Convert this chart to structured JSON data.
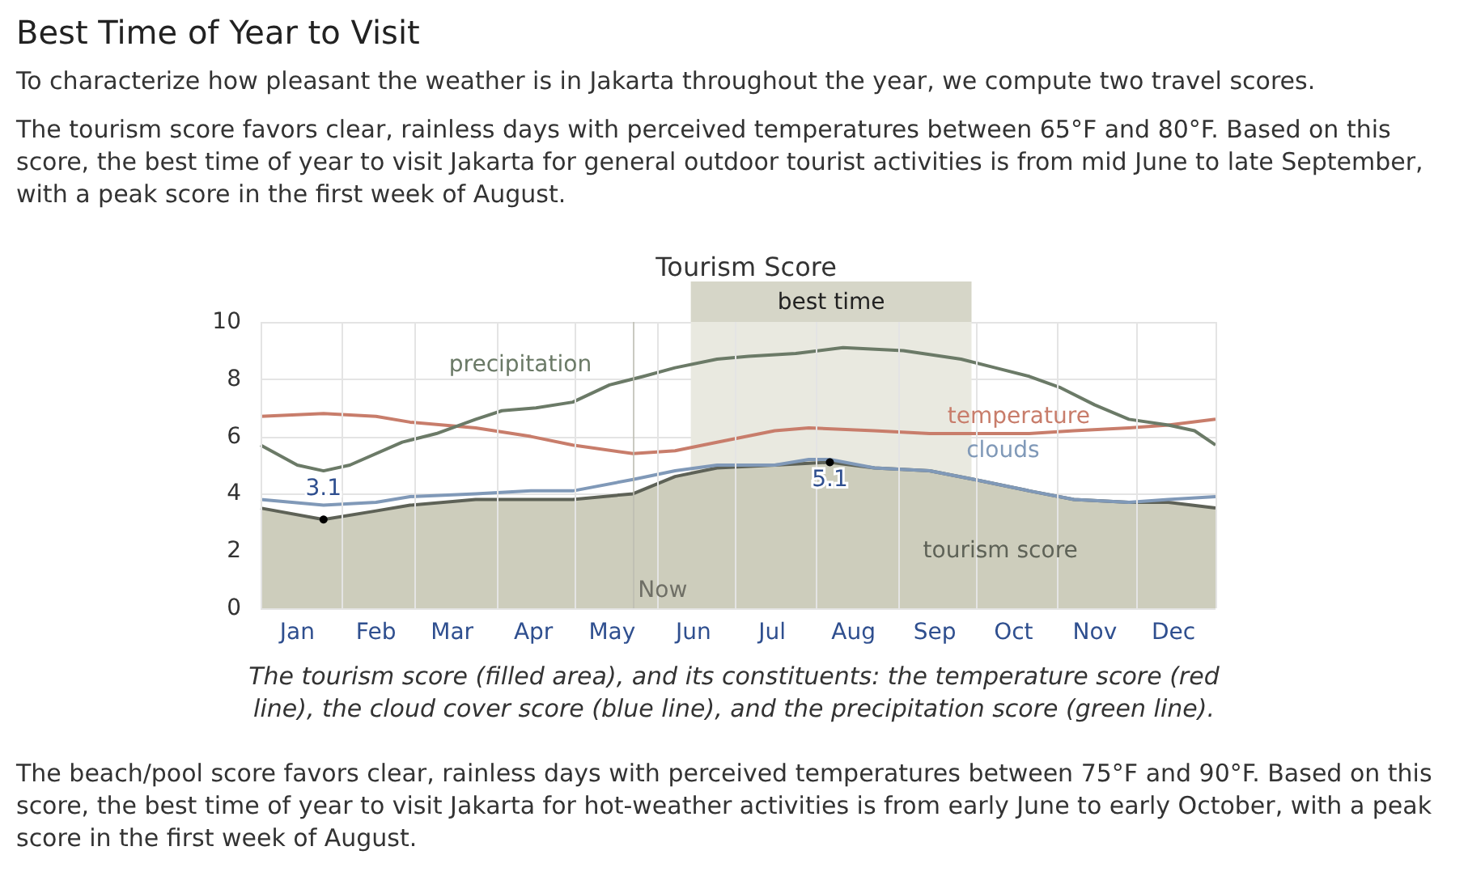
{
  "chart_data": {
    "type": "line",
    "title": "Best Time of Year to Visit",
    "subtitle": "Tourism Score",
    "annotations": [
      "To characterize how pleasant the weather is in Jakarta throughout the year, we compute two travel scores.",
      "The tourism score favors clear, rainless days with perceived temperatures between 65°F and 80°F. Based on this score, the best time of year to visit Jakarta for general outdoor tourist activities is from mid June to late September, with a peak score in the first week of August.",
      "The tourism score (filled area), and its constituents: the temperature score (red line), the cloud cover score (blue line), and the precipitation score (green line).",
      "The beach/pool score favors clear, rainless days with perceived temperatures between 75°F and 90°F. Based on this score, the best time of year to visit Jakarta for hot-weather activities is from early June to early October, with a peak score in the first week of August."
    ],
    "xlim": [
      "--01-01",
      "--12-31"
    ],
    "xticks": [
      {
        "value": "--01-01",
        "label": null
      },
      {
        "value": "--01-15",
        "label": "Jan"
      },
      {
        "value": "--02-01",
        "label": null
      },
      {
        "value": "--02-14",
        "label": "Feb"
      },
      {
        "value": "--03-01",
        "label": null
      },
      {
        "value": "--03-15",
        "label": "Mar"
      },
      {
        "value": "--04-01",
        "label": null
      },
      {
        "value": "--04-15",
        "label": "Apr"
      },
      {
        "value": "--05-01",
        "label": null
      },
      {
        "value": "--05-15",
        "label": "May"
      },
      {
        "value": "--06-01",
        "label": null
      },
      {
        "value": "--06-15",
        "label": "Jun"
      },
      {
        "value": "--07-01",
        "label": null
      },
      {
        "value": "--07-15",
        "label": "Jul"
      },
      {
        "value": "--08-01",
        "label": null
      },
      {
        "value": "--08-15",
        "label": "Aug"
      },
      {
        "value": "--09-01",
        "label": null
      },
      {
        "value": "--09-15",
        "label": "Sep"
      },
      {
        "value": "--10-01",
        "label": null
      },
      {
        "value": "--10-15",
        "label": "Oct"
      },
      {
        "value": "--11-01",
        "label": null
      },
      {
        "value": "--11-15",
        "label": "Nov"
      },
      {
        "value": "--12-01",
        "label": null
      },
      {
        "value": "--12-15",
        "label": "Dec"
      },
      {
        "value": "--12-31",
        "label": null
      }
    ],
    "ylim": [
      0,
      10
    ],
    "yticks": [
      0,
      2,
      4,
      6,
      8,
      10
    ],
    "grid": true,
    "legend": false,
    "marker": "none",
    "bands": [
      {
        "axis": "x",
        "from": "--06-14",
        "to": "--09-29",
        "label": "best time",
        "color": "#e9e9e0"
      }
    ],
    "ref_lines": [
      {
        "axis": "x",
        "value": "--05-23",
        "label": "Now",
        "color": "#bdbdb2"
      }
    ],
    "series": [
      {
        "name": "tourism score",
        "type": "area",
        "color": "#cdcdbc",
        "x": [
          "--01-01",
          "--01-25",
          "--02-14",
          "--02-27",
          "--03-24",
          "--04-14",
          "--04-30",
          "--05-23",
          "--06-08",
          "--06-24",
          "--07-16",
          "--08-06",
          "--08-23",
          "--09-13",
          "--09-30",
          "--10-21",
          "--11-07",
          "--11-28",
          "--12-13",
          "--12-31"
        ],
        "values": [
          3.5,
          3.1,
          3.4,
          3.6,
          3.8,
          3.8,
          3.8,
          4.0,
          4.6,
          4.9,
          5.0,
          5.1,
          4.9,
          4.8,
          4.5,
          4.1,
          3.8,
          3.7,
          3.7,
          3.5
        ],
        "value_labels": [
          null,
          "3.1",
          null,
          null,
          null,
          null,
          null,
          null,
          null,
          null,
          null,
          "5.1",
          null,
          null,
          null,
          null,
          null,
          null,
          null,
          null
        ]
      },
      {
        "name": "clouds",
        "type": "line",
        "color": "#8099b8",
        "x": [
          "--01-01",
          "--01-25",
          "--02-14",
          "--02-27",
          "--03-24",
          "--04-14",
          "--04-30",
          "--05-23",
          "--06-08",
          "--06-24",
          "--07-16",
          "--07-29",
          "--08-06",
          "--08-23",
          "--09-13",
          "--09-30",
          "--10-21",
          "--11-07",
          "--11-28",
          "--12-13",
          "--12-31"
        ],
        "values": [
          3.8,
          3.6,
          3.7,
          3.9,
          4.0,
          4.1,
          4.1,
          4.5,
          4.8,
          5.0,
          5.0,
          5.2,
          5.2,
          4.9,
          4.8,
          4.5,
          4.1,
          3.8,
          3.7,
          3.8,
          3.9
        ]
      },
      {
        "name": "temperature",
        "type": "line",
        "color": "#c87d6b",
        "x": [
          "--01-01",
          "--01-25",
          "--02-14",
          "--02-27",
          "--03-24",
          "--04-14",
          "--04-30",
          "--05-23",
          "--06-08",
          "--06-24",
          "--07-16",
          "--07-29",
          "--08-23",
          "--09-13",
          "--09-30",
          "--10-21",
          "--11-07",
          "--11-28",
          "--12-13",
          "--12-31"
        ],
        "values": [
          6.7,
          6.8,
          6.7,
          6.5,
          6.3,
          6.0,
          5.7,
          5.4,
          5.5,
          5.8,
          6.2,
          6.3,
          6.2,
          6.1,
          6.1,
          6.1,
          6.2,
          6.3,
          6.4,
          6.6
        ]
      },
      {
        "name": "precipitation",
        "type": "line",
        "color": "#6b7a67",
        "x": [
          "--01-01",
          "--01-15",
          "--01-25",
          "--02-04",
          "--02-24",
          "--03-09",
          "--03-24",
          "--04-03",
          "--04-16",
          "--04-30",
          "--05-14",
          "--05-27",
          "--06-08",
          "--06-24",
          "--07-06",
          "--07-24",
          "--08-11",
          "--09-03",
          "--09-25",
          "--10-08",
          "--10-21",
          "--11-02",
          "--11-15",
          "--11-28",
          "--12-13",
          "--12-23",
          "--12-31"
        ],
        "values": [
          5.7,
          5.0,
          4.8,
          5.0,
          5.8,
          6.1,
          6.6,
          6.9,
          7.0,
          7.2,
          7.8,
          8.1,
          8.4,
          8.7,
          8.8,
          8.9,
          9.1,
          9.0,
          8.7,
          8.4,
          8.1,
          7.7,
          7.1,
          6.6,
          6.4,
          6.2,
          5.7
        ]
      }
    ]
  }
}
